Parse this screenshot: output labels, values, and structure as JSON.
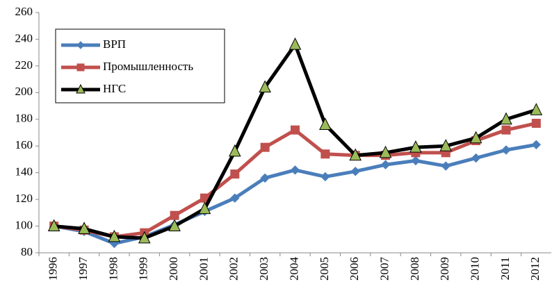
{
  "chart_data": {
    "type": "line",
    "categories": [
      "1996",
      "1997",
      "1998",
      "1999",
      "2000",
      "2001",
      "2002",
      "2003",
      "2004",
      "2005",
      "2006",
      "2007",
      "2008",
      "2009",
      "2010",
      "2011",
      "2012"
    ],
    "series": [
      {
        "name": "ВРП",
        "color": "#4a7ebb",
        "marker": "diamond",
        "values": [
          100,
          96,
          87,
          92,
          101,
          111,
          121,
          136,
          142,
          137,
          141,
          146,
          149,
          145,
          151,
          157,
          161
        ]
      },
      {
        "name": "Промышленность",
        "color": "#c0504d",
        "marker": "square",
        "values": [
          100,
          97,
          92,
          95,
          108,
          121,
          139,
          159,
          172,
          154,
          153,
          153,
          155,
          155,
          164,
          172,
          177
        ]
      },
      {
        "name": "НГС",
        "color": "#000000",
        "marker": "triangle",
        "marker_fill": "#9bbb59",
        "values": [
          100,
          98,
          92,
          91,
          100,
          113,
          156,
          204,
          236,
          176,
          153,
          155,
          159,
          160,
          166,
          180,
          187
        ]
      }
    ],
    "ylim": [
      80,
      260
    ],
    "yticks": [
      80,
      100,
      120,
      140,
      160,
      180,
      200,
      220,
      240,
      260
    ],
    "grid": false,
    "legend": "upper left"
  }
}
